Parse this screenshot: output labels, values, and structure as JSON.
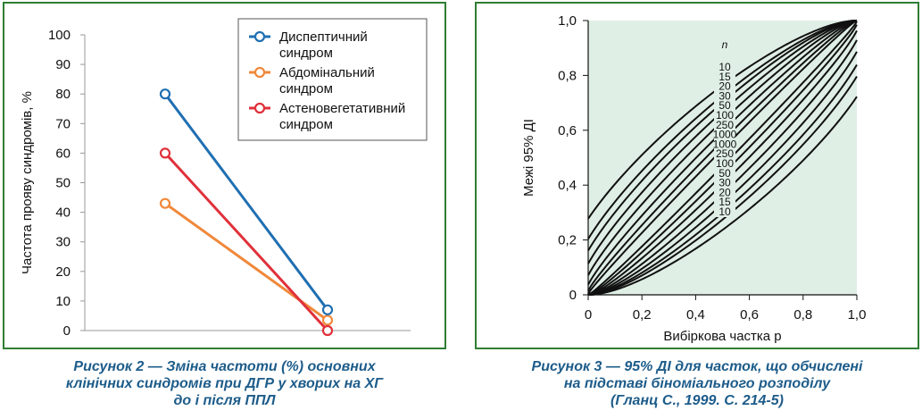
{
  "chart_data": [
    {
      "type": "line",
      "title": "",
      "xlabel": "",
      "ylabel": "Частота прояву синдромів, %",
      "ylim": [
        0,
        100
      ],
      "yticks": [
        "0",
        "10",
        "20",
        "30",
        "40",
        "50",
        "60",
        "70",
        "80",
        "90",
        "100"
      ],
      "grid": false,
      "legend_position": "top-right",
      "series": [
        {
          "name_lines": [
            "Диспептичний",
            "синдром"
          ],
          "color": "#1f6fb2",
          "values": [
            80,
            7
          ]
        },
        {
          "name_lines": [
            "Абдомінальний",
            "синдром"
          ],
          "color": "#f0883a",
          "values": [
            43,
            3.5
          ]
        },
        {
          "name_lines": [
            "Астеновегетативний",
            "синдром"
          ],
          "color": "#e0303a",
          "values": [
            60,
            0
          ]
        }
      ]
    },
    {
      "type": "line",
      "title": "",
      "xlabel": "Вибіркова частка p",
      "ylabel": "Межі 95% ДІ",
      "xlim": [
        0,
        1
      ],
      "ylim": [
        0,
        1
      ],
      "xticks": [
        "0",
        "0,2",
        "0,4",
        "0,6",
        "0,8",
        "1,0"
      ],
      "yticks": [
        "0",
        "0,2",
        "0,4",
        "0,6",
        "0,8",
        "1,0"
      ],
      "background": "#e0efe6",
      "n_header": "n",
      "upper_n_labels": [
        "10",
        "15",
        "20",
        "30",
        "50",
        "100",
        "250",
        "1000"
      ],
      "lower_n_labels": [
        "1000",
        "250",
        "100",
        "50",
        "30",
        "20",
        "15",
        "10"
      ],
      "series": [
        {
          "n": 10,
          "bound": "upper"
        },
        {
          "n": 15,
          "bound": "upper"
        },
        {
          "n": 20,
          "bound": "upper"
        },
        {
          "n": 30,
          "bound": "upper"
        },
        {
          "n": 50,
          "bound": "upper"
        },
        {
          "n": 100,
          "bound": "upper"
        },
        {
          "n": 250,
          "bound": "upper"
        },
        {
          "n": 1000,
          "bound": "upper"
        },
        {
          "n": 1000,
          "bound": "lower"
        },
        {
          "n": 250,
          "bound": "lower"
        },
        {
          "n": 100,
          "bound": "lower"
        },
        {
          "n": 50,
          "bound": "lower"
        },
        {
          "n": 30,
          "bound": "lower"
        },
        {
          "n": 20,
          "bound": "lower"
        },
        {
          "n": 15,
          "bound": "lower"
        },
        {
          "n": 10,
          "bound": "lower"
        }
      ]
    }
  ],
  "captions": {
    "left": [
      "Рисунок 2 — Зміна частоти (%) основних",
      "клінічних синдромів при ДГР у хворих на ХГ",
      "до і після ППЛ"
    ],
    "right": [
      "Рисунок 3 — 95% ДІ для часток, що обчислені",
      "на підставі біноміального розподілу",
      "(Гланц С., 1999. С. 214-5)"
    ]
  },
  "colors": {
    "frame": "#2f7d32",
    "caption": "#1d5c8a"
  }
}
